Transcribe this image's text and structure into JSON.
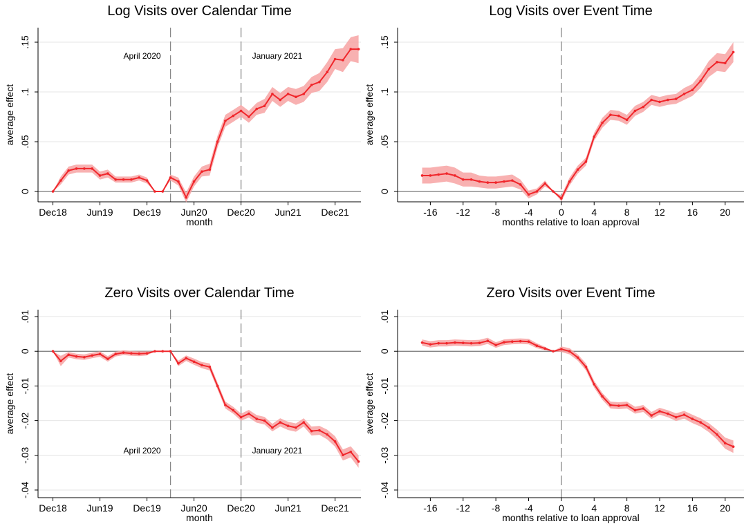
{
  "chart_data": [
    {
      "type": "line",
      "title": "Log Visits over Calendar Time",
      "xlabel": "month",
      "ylabel": "average effect",
      "x": [
        0,
        1,
        2,
        3,
        4,
        5,
        6,
        7,
        8,
        9,
        10,
        11,
        12,
        13,
        14,
        15,
        16,
        17,
        18,
        19,
        20,
        21,
        22,
        23,
        24,
        25,
        26,
        27,
        28,
        29,
        30,
        31,
        32,
        33,
        34,
        35,
        36,
        37,
        38,
        39
      ],
      "values": [
        0,
        0.011,
        0.021,
        0.023,
        0.023,
        0.023,
        0.016,
        0.018,
        0.012,
        0.012,
        0.012,
        0.014,
        0.011,
        0,
        0,
        0.014,
        0.01,
        -0.006,
        0.01,
        0.02,
        0.022,
        0.05,
        0.071,
        0.076,
        0.081,
        0.075,
        0.083,
        0.086,
        0.098,
        0.092,
        0.098,
        0.095,
        0.098,
        0.107,
        0.11,
        0.12,
        0.133,
        0.132,
        0.143,
        0.143
      ],
      "ci": [
        0,
        0.004,
        0.004,
        0.004,
        0.004,
        0.004,
        0.004,
        0.004,
        0.003,
        0.003,
        0.003,
        0.003,
        0.003,
        0,
        0,
        0.003,
        0.004,
        0.005,
        0.005,
        0.005,
        0.006,
        0.006,
        0.006,
        0.006,
        0.006,
        0.006,
        0.006,
        0.007,
        0.007,
        0.007,
        0.007,
        0.008,
        0.008,
        0.008,
        0.009,
        0.01,
        0.01,
        0.012,
        0.012,
        0.014
      ],
      "xlim": [
        -1.9,
        39.3
      ],
      "ylim": [
        -0.0104,
        0.1646
      ],
      "xticks": [
        {
          "value": 0,
          "label": "Dec18"
        },
        {
          "value": 6,
          "label": "Jun19"
        },
        {
          "value": 12,
          "label": "Dec19"
        },
        {
          "value": 18,
          "label": "Jun20"
        },
        {
          "value": 24,
          "label": "Dec20"
        },
        {
          "value": 30,
          "label": "Jun21"
        },
        {
          "value": 36,
          "label": "Dec21"
        }
      ],
      "yticks": [
        0,
        {
          "value": 0.05,
          "label": ".05"
        },
        {
          "value": 0.1,
          "label": ".1"
        },
        {
          "value": 0.15,
          "label": ".15"
        }
      ],
      "hline": 0,
      "vlines": [
        {
          "x": 15,
          "label": "April 2020"
        },
        {
          "x": 24,
          "label": "January 2021"
        }
      ],
      "color": "#f0262b",
      "band_color": "#f7a3a3",
      "grid": true
    },
    {
      "type": "line",
      "title": "Log Visits over Event Time",
      "xlabel": "months relative to loan approval",
      "ylabel": "average effect",
      "x": [
        -17,
        -16,
        -15,
        -14,
        -13,
        -12,
        -11,
        -10,
        -9,
        -8,
        -7,
        -6,
        -5,
        -4,
        -3,
        -2,
        -1,
        0,
        1,
        2,
        3,
        4,
        5,
        6,
        7,
        8,
        9,
        10,
        11,
        12,
        13,
        14,
        15,
        16,
        17,
        18,
        19,
        20,
        21
      ],
      "values": [
        0.016,
        0.016,
        0.017,
        0.018,
        0.016,
        0.012,
        0.012,
        0.01,
        0.009,
        0.009,
        0.01,
        0.011,
        0.007,
        -0.003,
        0,
        0.008,
        0,
        -0.007,
        0.01,
        0.022,
        0.03,
        0.055,
        0.069,
        0.077,
        0.076,
        0.072,
        0.081,
        0.085,
        0.092,
        0.09,
        0.092,
        0.093,
        0.098,
        0.102,
        0.111,
        0.123,
        0.13,
        0.129,
        0.14
      ],
      "ci": [
        0.008,
        0.008,
        0.008,
        0.008,
        0.008,
        0.007,
        0.007,
        0.006,
        0.006,
        0.006,
        0.006,
        0.006,
        0.005,
        0.004,
        0.003,
        0.003,
        0,
        0.003,
        0.004,
        0.004,
        0.004,
        0.004,
        0.005,
        0.005,
        0.005,
        0.005,
        0.005,
        0.005,
        0.005,
        0.005,
        0.005,
        0.005,
        0.006,
        0.006,
        0.007,
        0.008,
        0.009,
        0.009,
        0.01
      ],
      "xlim": [
        -20,
        22.3
      ],
      "ylim": [
        -0.0104,
        0.1646
      ],
      "xticks": [
        -16,
        -12,
        -8,
        -4,
        0,
        4,
        8,
        12,
        16,
        20
      ],
      "yticks": [
        0,
        {
          "value": 0.05,
          "label": ".05"
        },
        {
          "value": 0.1,
          "label": ".1"
        },
        {
          "value": 0.15,
          "label": ".15"
        }
      ],
      "hline": 0,
      "vlines": [
        {
          "x": 0
        }
      ],
      "color": "#f0262b",
      "band_color": "#f7a3a3",
      "grid": true
    },
    {
      "type": "line",
      "title": "Zero Visits over Calendar Time",
      "xlabel": "month",
      "ylabel": "average effect",
      "x": [
        0,
        1,
        2,
        3,
        4,
        5,
        6,
        7,
        8,
        9,
        10,
        11,
        12,
        13,
        14,
        15,
        16,
        17,
        18,
        19,
        20,
        21,
        22,
        23,
        24,
        25,
        26,
        27,
        28,
        29,
        30,
        31,
        32,
        33,
        34,
        35,
        36,
        37,
        38,
        39
      ],
      "values": [
        0,
        -0.0028,
        -0.001,
        -0.0015,
        -0.0017,
        -0.0012,
        -0.0008,
        -0.0022,
        -0.0008,
        -0.0004,
        -0.0006,
        -0.0007,
        -0.0006,
        0,
        0,
        0,
        -0.0035,
        -0.002,
        -0.003,
        -0.004,
        -0.0045,
        -0.01,
        -0.0155,
        -0.017,
        -0.019,
        -0.018,
        -0.0195,
        -0.02,
        -0.022,
        -0.0205,
        -0.0215,
        -0.022,
        -0.0205,
        -0.023,
        -0.0228,
        -0.024,
        -0.026,
        -0.0299,
        -0.029,
        -0.0318
      ],
      "ci": [
        0,
        0.0015,
        0.0008,
        0.0008,
        0.0008,
        0.0008,
        0.0008,
        0.0008,
        0.0007,
        0.0007,
        0.0007,
        0.0007,
        0.0006,
        0,
        0,
        0,
        0.0008,
        0.0008,
        0.0009,
        0.0009,
        0.001,
        0.001,
        0.001,
        0.001,
        0.001,
        0.0011,
        0.0011,
        0.0011,
        0.0011,
        0.0012,
        0.0012,
        0.0012,
        0.0012,
        0.0013,
        0.0013,
        0.0014,
        0.0015,
        0.0016,
        0.0016,
        0.0018
      ],
      "xlim": [
        -1.9,
        39.3
      ],
      "ylim": [
        -0.0422,
        0.012
      ],
      "xticks": [
        {
          "value": 0,
          "label": "Dec18"
        },
        {
          "value": 6,
          "label": "Jun19"
        },
        {
          "value": 12,
          "label": "Dec19"
        },
        {
          "value": 18,
          "label": "Jun20"
        },
        {
          "value": 24,
          "label": "Dec20"
        },
        {
          "value": 30,
          "label": "Jun21"
        },
        {
          "value": 36,
          "label": "Dec21"
        }
      ],
      "yticks": [
        {
          "value": 0.01,
          "label": ".01"
        },
        0,
        {
          "value": -0.01,
          "label": "-.01"
        },
        {
          "value": -0.02,
          "label": "-.02"
        },
        {
          "value": -0.03,
          "label": "-.03"
        },
        {
          "value": -0.04,
          "label": "-.04"
        }
      ],
      "hline": 0,
      "vlines": [
        {
          "x": 15,
          "label": "April 2020"
        },
        {
          "x": 24,
          "label": "January 2021"
        }
      ],
      "color": "#f0262b",
      "band_color": "#f7a3a3",
      "grid": true
    },
    {
      "type": "line",
      "title": "Zero Visits over Event Time",
      "xlabel": "months relative to loan approval",
      "ylabel": "average effect",
      "x": [
        -17,
        -16,
        -15,
        -14,
        -13,
        -12,
        -11,
        -10,
        -9,
        -8,
        -7,
        -6,
        -5,
        -4,
        -3,
        -2,
        -1,
        0,
        1,
        2,
        3,
        4,
        5,
        6,
        7,
        8,
        9,
        10,
        11,
        12,
        13,
        14,
        15,
        16,
        17,
        18,
        19,
        20,
        21
      ],
      "values": [
        0.0025,
        0.002,
        0.0023,
        0.0023,
        0.0025,
        0.0024,
        0.0023,
        0.0024,
        0.003,
        0.0018,
        0.0026,
        0.0028,
        0.0029,
        0.0028,
        0.0016,
        0.0008,
        0,
        0.0006,
        0,
        -0.0018,
        -0.0045,
        -0.0095,
        -0.013,
        -0.0155,
        -0.0157,
        -0.0155,
        -0.017,
        -0.0165,
        -0.0185,
        -0.0173,
        -0.018,
        -0.019,
        -0.0183,
        -0.0195,
        -0.0205,
        -0.022,
        -0.024,
        -0.0265,
        -0.0275
      ],
      "ci": [
        0.0009,
        0.0009,
        0.0009,
        0.0009,
        0.0009,
        0.0009,
        0.0009,
        0.0009,
        0.0009,
        0.0008,
        0.0008,
        0.0008,
        0.0008,
        0.0008,
        0.0007,
        0.0005,
        0,
        0.0008,
        0.0009,
        0.0009,
        0.001,
        0.001,
        0.001,
        0.001,
        0.001,
        0.001,
        0.001,
        0.001,
        0.001,
        0.001,
        0.001,
        0.0011,
        0.0011,
        0.0012,
        0.0012,
        0.0013,
        0.0014,
        0.0016,
        0.0018
      ],
      "xlim": [
        -20,
        22.3
      ],
      "ylim": [
        -0.0422,
        0.012
      ],
      "xticks": [
        -16,
        -12,
        -8,
        -4,
        0,
        4,
        8,
        12,
        16,
        20
      ],
      "yticks": [
        {
          "value": 0.01,
          "label": ".01"
        },
        0,
        {
          "value": -0.01,
          "label": "-.01"
        },
        {
          "value": -0.02,
          "label": "-.02"
        },
        {
          "value": -0.03,
          "label": "-.03"
        },
        {
          "value": -0.04,
          "label": "-.04"
        }
      ],
      "hline": 0,
      "vlines": [
        {
          "x": 0
        }
      ],
      "color": "#f0262b",
      "band_color": "#f7a3a3",
      "grid": true
    }
  ]
}
